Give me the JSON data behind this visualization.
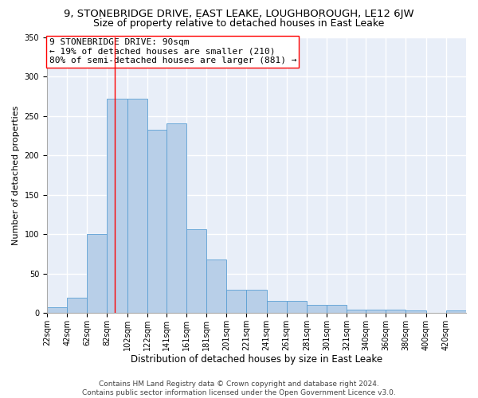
{
  "title": "9, STONEBRIDGE DRIVE, EAST LEAKE, LOUGHBOROUGH, LE12 6JW",
  "subtitle": "Size of property relative to detached houses in East Leake",
  "xlabel": "Distribution of detached houses by size in East Leake",
  "ylabel": "Number of detached properties",
  "footer_line1": "Contains HM Land Registry data © Crown copyright and database right 2024.",
  "footer_line2": "Contains public sector information licensed under the Open Government Licence v3.0.",
  "annotation_line1": "9 STONEBRIDGE DRIVE: 90sqm",
  "annotation_line2": "← 19% of detached houses are smaller (210)",
  "annotation_line3": "80% of semi-detached houses are larger (881) →",
  "bar_edges": [
    22,
    42,
    62,
    82,
    102,
    122,
    141,
    161,
    181,
    201,
    221,
    241,
    261,
    281,
    301,
    321,
    340,
    360,
    380,
    400,
    420
  ],
  "bar_heights": [
    7,
    19,
    100,
    272,
    272,
    232,
    241,
    106,
    68,
    30,
    30,
    15,
    15,
    10,
    10,
    4,
    4,
    4,
    3,
    0,
    3
  ],
  "bar_color": "#b8cfe8",
  "bar_edge_color": "#5a9fd4",
  "red_line_x": 90,
  "ylim": [
    0,
    350
  ],
  "yticks": [
    0,
    50,
    100,
    150,
    200,
    250,
    300,
    350
  ],
  "bg_color": "#ffffff",
  "plot_bg_color": "#e8eef8",
  "title_fontsize": 9.5,
  "subtitle_fontsize": 9,
  "xlabel_fontsize": 8.5,
  "ylabel_fontsize": 8,
  "tick_fontsize": 7,
  "annotation_fontsize": 8,
  "footer_fontsize": 6.5,
  "grid_color": "#ffffff",
  "grid_linewidth": 1.0
}
